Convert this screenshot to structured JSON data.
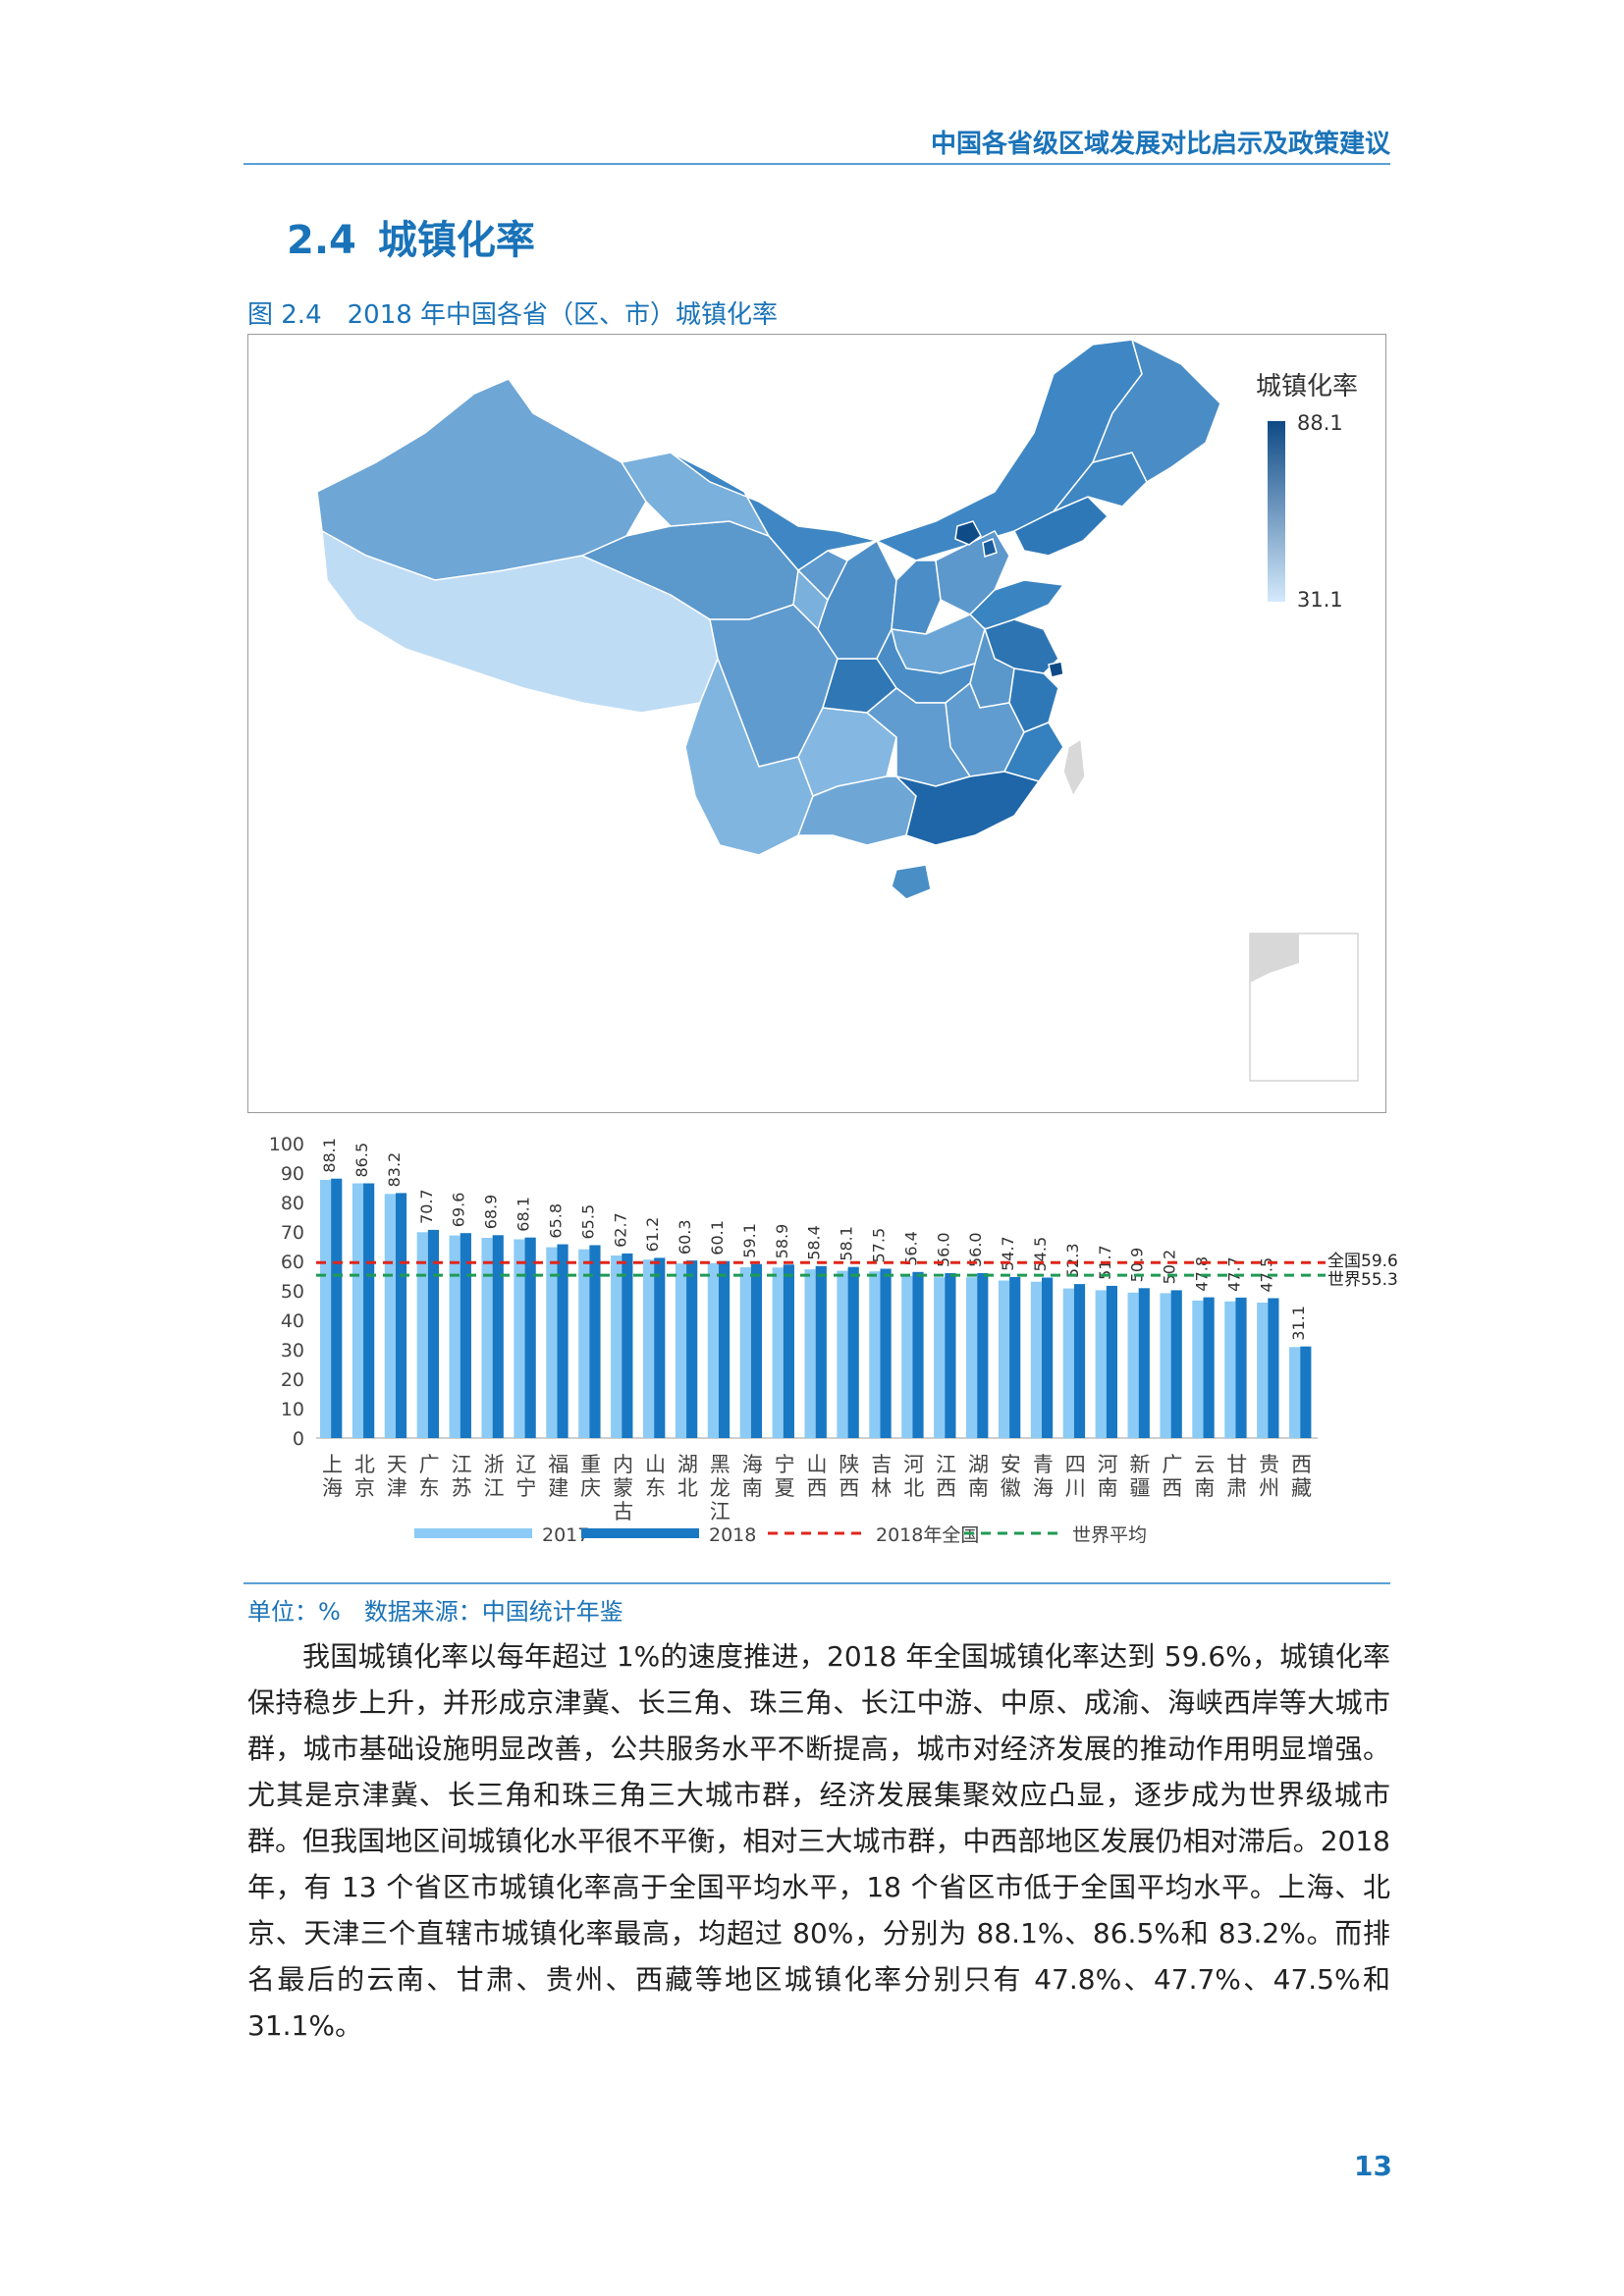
{
  "header": {
    "title": "中国各省级区域发展对比启示及政策建议"
  },
  "section": {
    "number": "2.4",
    "title": "城镇化率"
  },
  "figure": {
    "number": "图 2.4",
    "caption": "2018 年中国各省（区、市）城镇化率"
  },
  "map_legend": {
    "title": "城镇化率",
    "max": "88.1",
    "min": "31.1"
  },
  "chart_data": {
    "type": "bar",
    "categories": [
      "上海",
      "北京",
      "天津",
      "广东",
      "江苏",
      "浙江",
      "辽宁",
      "福建",
      "重庆",
      "内蒙古",
      "山东",
      "湖北",
      "黑龙江",
      "海南",
      "宁夏",
      "山西",
      "陕西",
      "吉林",
      "河北",
      "江西",
      "湖南",
      "安徽",
      "青海",
      "四川",
      "河南",
      "新疆",
      "广西",
      "云南",
      "甘肃",
      "贵州",
      "西藏"
    ],
    "series": [
      {
        "name": "2017",
        "color": "#8ccbf5",
        "values": [
          87.7,
          86.5,
          82.9,
          69.9,
          68.8,
          68.0,
          67.5,
          64.8,
          64.1,
          62.0,
          60.6,
          59.3,
          59.4,
          58.0,
          57.9,
          57.3,
          56.8,
          56.6,
          55.0,
          54.6,
          54.6,
          53.5,
          53.1,
          50.8,
          50.2,
          49.4,
          49.2,
          46.7,
          46.4,
          46.0,
          30.9
        ]
      },
      {
        "name": "2018",
        "color": "#1878c4",
        "values": [
          88.1,
          86.5,
          83.2,
          70.7,
          69.6,
          68.9,
          68.1,
          65.8,
          65.5,
          62.7,
          61.2,
          60.3,
          60.1,
          59.1,
          58.9,
          58.4,
          58.1,
          57.5,
          56.4,
          56.0,
          56.0,
          54.7,
          54.5,
          52.3,
          51.7,
          50.9,
          50.2,
          47.8,
          47.7,
          47.5,
          31.1
        ]
      }
    ],
    "data_labels": [
      "88.1",
      "86.5",
      "83.2",
      "70.7",
      "69.6",
      "68.9",
      "68.1",
      "65.8",
      "65.5",
      "62.7",
      "61.2",
      "60.3",
      "60.1",
      "59.1",
      "58.9",
      "58.4",
      "58.1",
      "57.5",
      "56.4",
      "56.0",
      "56.0",
      "54.7",
      "54.5",
      "52.3",
      "51.7",
      "50.9",
      "50.2",
      "47.8",
      "47.7",
      "47.5",
      "31.1"
    ],
    "reference_lines": [
      {
        "name": "2018年全国",
        "value": 59.6,
        "label": "全国59.6",
        "color": "#e0251b"
      },
      {
        "name": "世界平均",
        "value": 55.3,
        "label": "世界55.3",
        "color": "#1f9a54"
      }
    ],
    "yticks": [
      "0",
      "10",
      "20",
      "30",
      "40",
      "50",
      "60",
      "70",
      "80",
      "90",
      "100"
    ],
    "ylim": [
      0,
      100
    ],
    "legend_position": "bottom"
  },
  "source": {
    "unit": "单位：%",
    "source": "数据来源：中国统计年鉴"
  },
  "body": {
    "paragraph": "我国城镇化率以每年超过 1%的速度推进，2018 年全国城镇化率达到 59.6%，城镇化率保持稳步上升，并形成京津冀、长三角、珠三角、长江中游、中原、成渝、海峡西岸等大城市群，城市基础设施明显改善，公共服务水平不断提高，城市对经济发展的推动作用明显增强。尤其是京津冀、长三角和珠三角三大城市群，经济发展集聚效应凸显，逐步成为世界级城市群。但我国地区间城镇化水平很不平衡，相对三大城市群，中西部地区发展仍相对滞后。2018 年，有 13 个省区市城镇化率高于全国平均水平，18 个省区市低于全国平均水平。上海、北京、天津三个直辖市城镇化率最高，均超过 80%，分别为 88.1%、86.5%和 83.2%。而排名最后的云南、甘肃、贵州、西藏等地区城镇化率分别只有 47.8%、47.7%、47.5%和 31.1%。"
  },
  "page": {
    "number": "13"
  }
}
